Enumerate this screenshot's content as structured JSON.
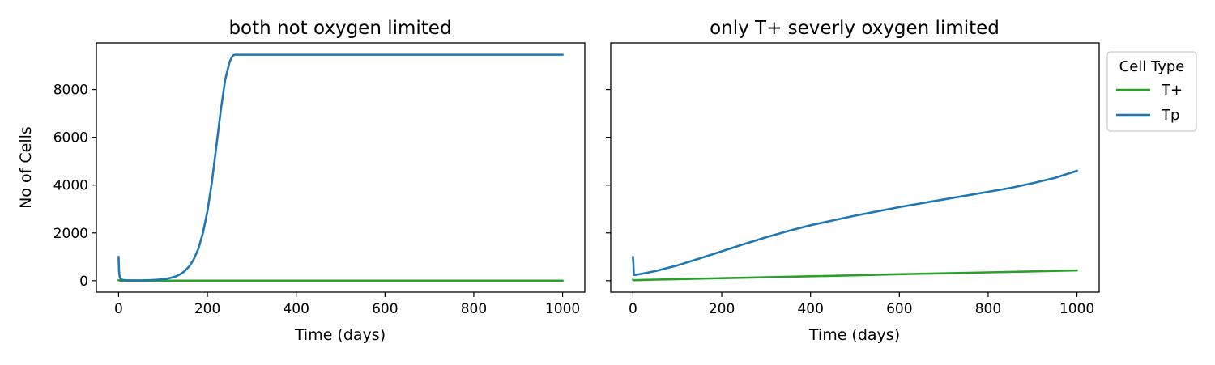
{
  "chart_data": [
    {
      "type": "line",
      "title": "both not oxygen limited",
      "xlabel": "Time (days)",
      "ylabel": "No of Cells",
      "xlim": [
        -50,
        1050
      ],
      "ylim": [
        -480,
        9950
      ],
      "xticks": [
        0,
        200,
        400,
        600,
        800,
        1000
      ],
      "xtick_labels": [
        "0",
        "200",
        "400",
        "600",
        "800",
        "1000"
      ],
      "yticks": [
        0,
        2000,
        4000,
        6000,
        8000
      ],
      "ytick_labels": [
        "0",
        "2000",
        "4000",
        "6000",
        "8000"
      ],
      "grid": false,
      "series": [
        {
          "name": "T+",
          "color": "#2ca02c",
          "x": [
            0,
            1,
            2,
            4,
            6,
            10,
            20,
            40,
            60,
            100,
            200,
            300,
            400,
            500,
            600,
            700,
            800,
            900,
            1000
          ],
          "y": [
            20,
            16,
            10,
            6,
            4,
            3,
            2,
            1,
            1,
            1,
            1,
            1,
            1,
            1,
            1,
            1,
            1,
            1,
            1
          ]
        },
        {
          "name": "Tp",
          "color": "#1f77b4",
          "x": [
            0,
            1,
            2,
            3,
            5,
            8,
            12,
            20,
            30,
            40,
            50,
            60,
            70,
            80,
            90,
            100,
            110,
            120,
            130,
            140,
            150,
            160,
            170,
            180,
            190,
            200,
            210,
            220,
            230,
            240,
            250,
            255,
            258,
            260,
            262,
            265,
            270,
            300,
            400,
            500,
            600,
            700,
            800,
            900,
            1000
          ],
          "y": [
            1000,
            420,
            220,
            130,
            70,
            40,
            25,
            15,
            12,
            12,
            14,
            18,
            24,
            32,
            44,
            62,
            88,
            130,
            190,
            280,
            420,
            620,
            920,
            1350,
            2000,
            2900,
            4100,
            5600,
            7100,
            8400,
            9150,
            9350,
            9420,
            9450,
            9455,
            9455,
            9455,
            9455,
            9455,
            9455,
            9455,
            9455,
            9455,
            9455,
            9455
          ]
        }
      ]
    },
    {
      "type": "line",
      "title": "only T+ severly oxygen limited",
      "xlabel": "Time (days)",
      "ylabel": "",
      "xlim": [
        -50,
        1050
      ],
      "ylim": [
        -480,
        9950
      ],
      "xticks": [
        0,
        200,
        400,
        600,
        800,
        1000
      ],
      "xtick_labels": [
        "0",
        "200",
        "400",
        "600",
        "800",
        "1000"
      ],
      "yticks": [
        0,
        2000,
        4000,
        6000,
        8000
      ],
      "ytick_labels": [],
      "grid": false,
      "legend": {
        "title": "Cell Type",
        "placement": "outside-upper-right",
        "entries": [
          "T+",
          "Tp"
        ]
      },
      "series": [
        {
          "name": "T+",
          "color": "#2ca02c",
          "x": [
            0,
            2,
            5,
            20,
            50,
            100,
            200,
            300,
            400,
            500,
            600,
            700,
            800,
            900,
            1000
          ],
          "y": [
            40,
            20,
            20,
            30,
            45,
            65,
            105,
            145,
            185,
            225,
            270,
            310,
            350,
            390,
            430
          ]
        },
        {
          "name": "Tp",
          "color": "#1f77b4",
          "x": [
            0,
            1,
            2,
            5,
            20,
            50,
            100,
            150,
            200,
            250,
            300,
            350,
            400,
            450,
            500,
            550,
            600,
            650,
            700,
            750,
            800,
            850,
            900,
            950,
            1000
          ],
          "y": [
            1000,
            700,
            240,
            240,
            290,
            400,
            640,
            930,
            1230,
            1530,
            1820,
            2080,
            2320,
            2520,
            2720,
            2900,
            3080,
            3240,
            3400,
            3560,
            3720,
            3880,
            4080,
            4300,
            4600
          ]
        }
      ]
    }
  ]
}
